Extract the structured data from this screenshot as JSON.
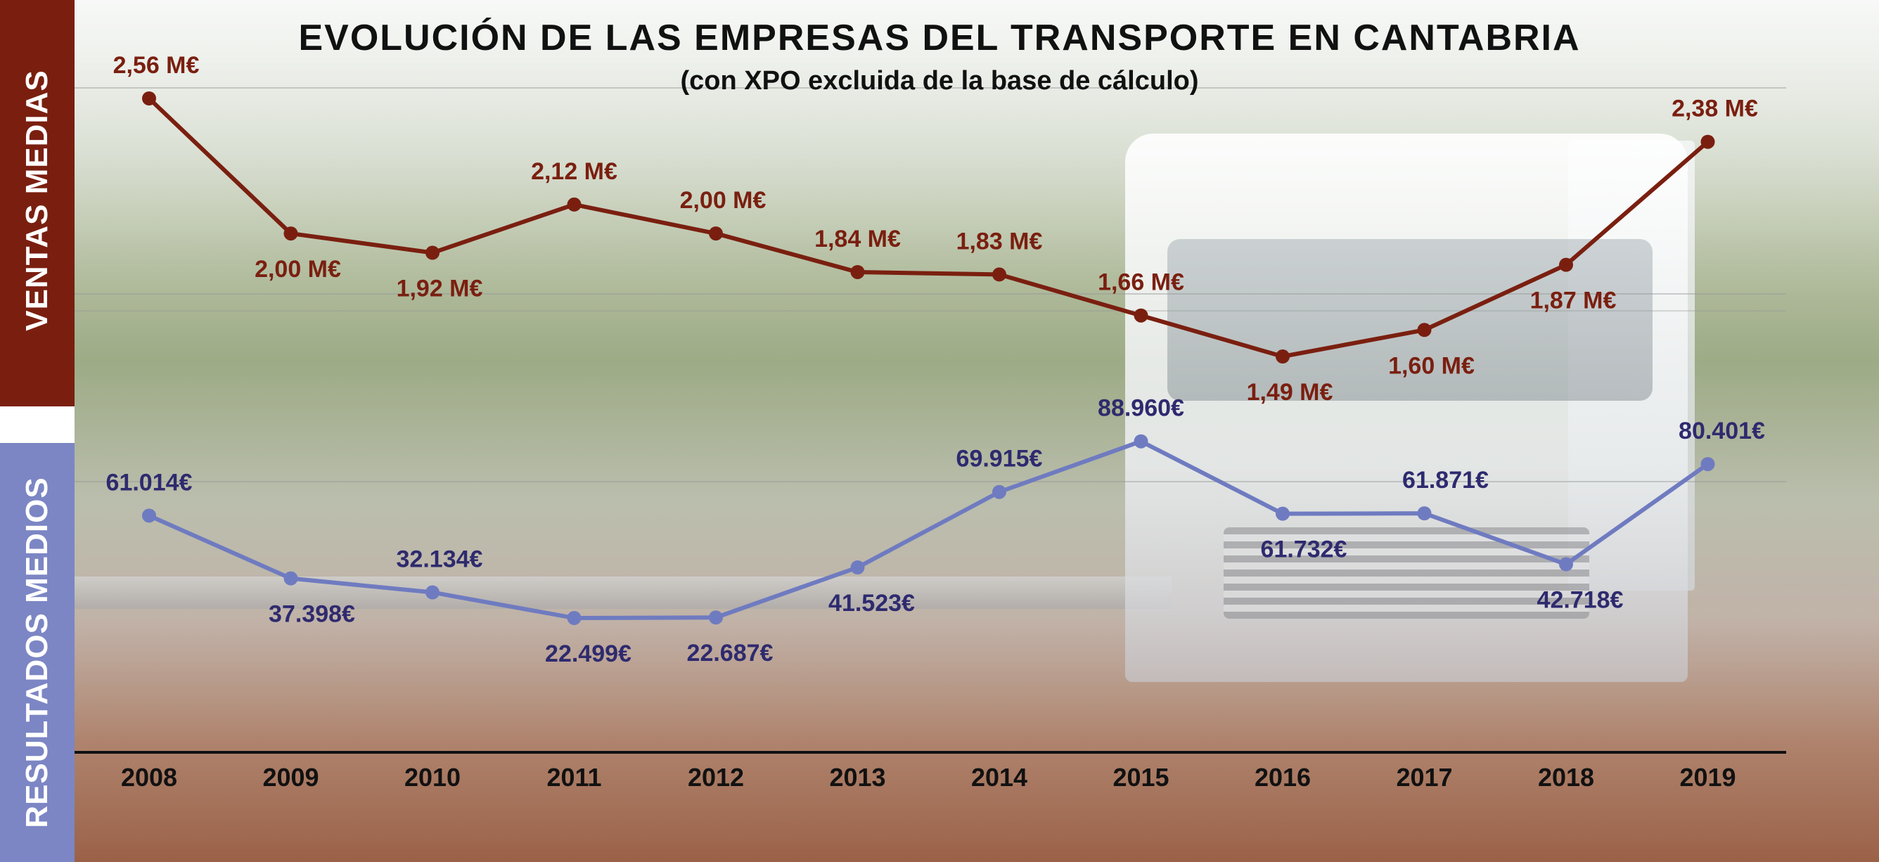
{
  "title": "EVOLUCIÓN DE LAS EMPRESAS DEL TRANSPORTE EN CANTABRIA",
  "subtitle": "(con XPO excluida de la base de cálculo)",
  "side_labels": {
    "top": "VENTAS MEDIAS",
    "bottom": "RESULTADOS MEDIOS"
  },
  "colors": {
    "ventas": "#7a1f10",
    "resultados": "#6f7bc0",
    "resultados_text": "#2e2a6e",
    "side_top": "#7a1f10",
    "side_bottom": "#7c86c4"
  },
  "chart_data": [
    {
      "type": "line",
      "categories": [
        "2008",
        "2009",
        "2010",
        "2011",
        "2012",
        "2013",
        "2014",
        "2015",
        "2016",
        "2017",
        "2018",
        "2019"
      ],
      "series": [
        {
          "name": "VENTAS MEDIAS",
          "unit": "M€",
          "values": [
            2.56,
            2.0,
            1.92,
            2.12,
            2.0,
            1.84,
            1.83,
            1.66,
            1.49,
            1.6,
            1.87,
            2.38
          ],
          "labels": [
            "2,56 M€",
            "2,00 M€",
            "1,92 M€",
            "2,12 M€",
            "2,00 M€",
            "1,84 M€",
            "1,83 M€",
            "1,66 M€",
            "1,49 M€",
            "1,60 M€",
            "1,87 M€",
            "2,38 M€"
          ]
        }
      ],
      "ylim": [
        1.2,
        2.7
      ],
      "grid": true
    },
    {
      "type": "line",
      "categories": [
        "2008",
        "2009",
        "2010",
        "2011",
        "2012",
        "2013",
        "2014",
        "2015",
        "2016",
        "2017",
        "2018",
        "2019"
      ],
      "series": [
        {
          "name": "RESULTADOS MEDIOS",
          "unit": "€",
          "values": [
            61014,
            37398,
            32134,
            22499,
            22687,
            41523,
            69915,
            88960,
            61732,
            61871,
            42718,
            80401
          ],
          "labels": [
            "61.014€",
            "37.398€",
            "32.134€",
            "22.499€",
            "22.687€",
            "41.523€",
            "69.915€",
            "88.960€",
            "61.732€",
            "61.871€",
            "42.718€",
            "80.401€"
          ]
        }
      ],
      "ylim": [
        0,
        100000
      ],
      "grid": true
    }
  ]
}
